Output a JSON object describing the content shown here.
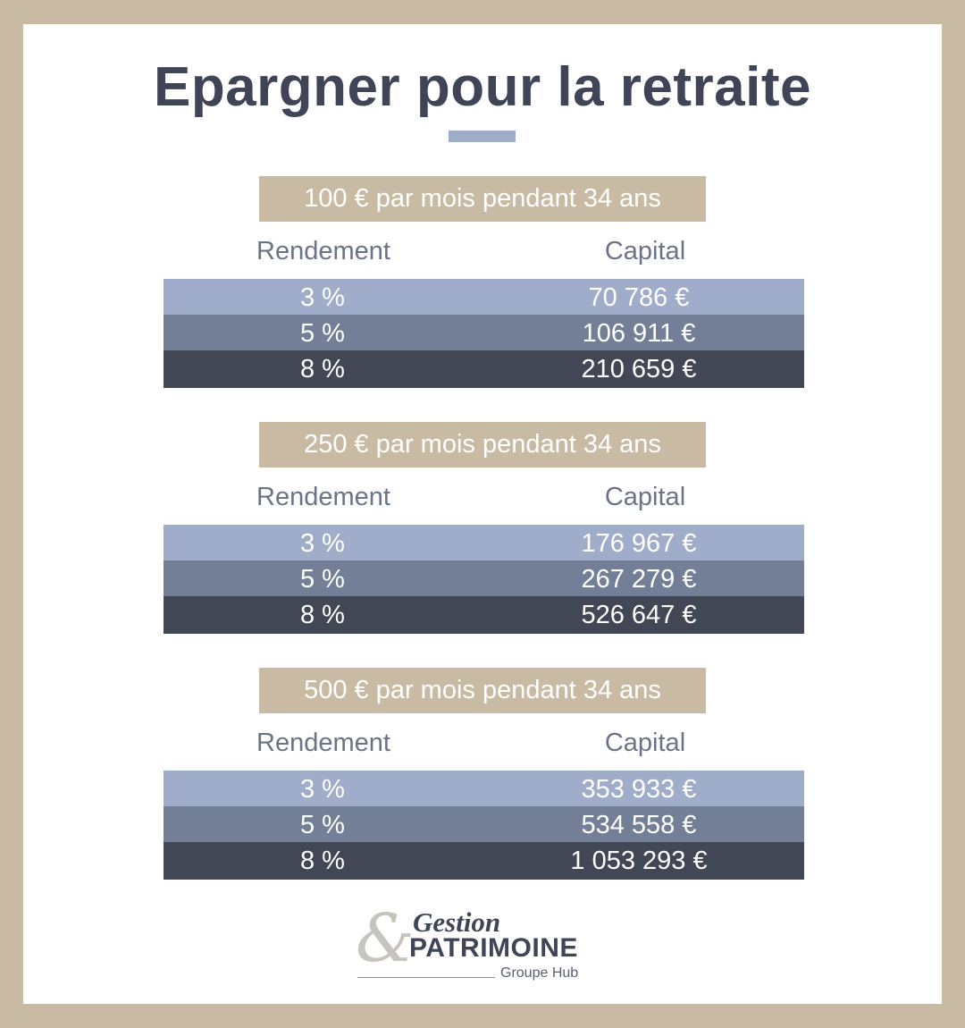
{
  "title": "Epargner pour la retraite",
  "accent_color": "#c9bba3",
  "row_colors": [
    "#9fadcb",
    "#727f96",
    "#424756"
  ],
  "sections": [
    {
      "label": "100 € par mois pendant 34 ans",
      "col_rendement": "Rendement",
      "col_capital": "Capital",
      "rows": [
        {
          "rate": "3 %",
          "capital": "70 786 €"
        },
        {
          "rate": "5 %",
          "capital": "106 911 €"
        },
        {
          "rate": "8 %",
          "capital": "210 659 €"
        }
      ]
    },
    {
      "label": "250 € par mois pendant 34 ans",
      "col_rendement": "Rendement",
      "col_capital": "Capital",
      "rows": [
        {
          "rate": "3 %",
          "capital": "176 967 €"
        },
        {
          "rate": "5 %",
          "capital": "267 279 €"
        },
        {
          "rate": "8 %",
          "capital": "526 647 €"
        }
      ]
    },
    {
      "label": "500 € par mois pendant 34 ans",
      "col_rendement": "Rendement",
      "col_capital": "Capital",
      "rows": [
        {
          "rate": "3 %",
          "capital": "353 933 €"
        },
        {
          "rate": "5 %",
          "capital": "534 558 €"
        },
        {
          "rate": "8 %",
          "capital": "1 053 293 €"
        }
      ]
    }
  ],
  "logo": {
    "ampersand": "&",
    "line1": "Gestion",
    "line2": "PATRIMOINE",
    "tagline": "Groupe Hub"
  }
}
